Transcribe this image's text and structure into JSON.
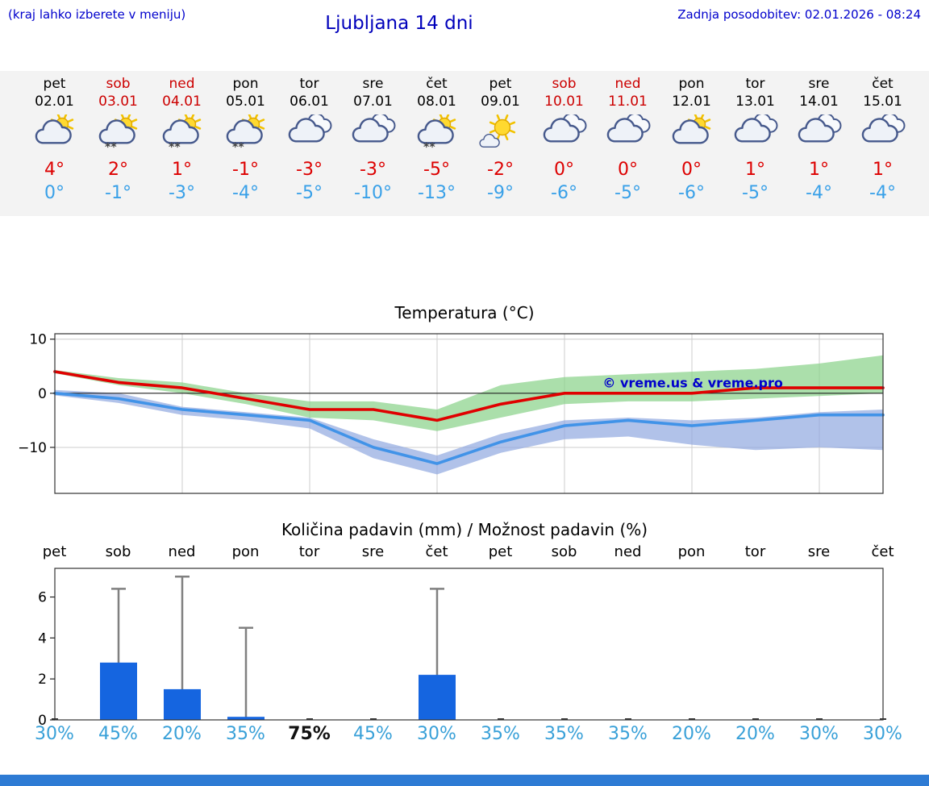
{
  "header": {
    "hint": "(kraj lahko izberete v meniju)",
    "title": "Ljubljana 14 dni",
    "updated": "Zadnja posodobitev: 02.01.2026 - 08:24"
  },
  "colors": {
    "high_temp": "#dd0000",
    "low_temp": "#38a0e8",
    "weekend": "#cc0000",
    "header_blue": "#0000cc",
    "strip_background": "#f3f3f3",
    "bottom_bar": "#2e7bd4"
  },
  "days": [
    {
      "name": "pet",
      "date": "02.01",
      "weekend": false,
      "icon": "partly-sunny-icon",
      "high": "4°",
      "low": "0°"
    },
    {
      "name": "sob",
      "date": "03.01",
      "weekend": true,
      "icon": "partly-sunny-snow-icon",
      "high": "2°",
      "low": "-1°"
    },
    {
      "name": "ned",
      "date": "04.01",
      "weekend": true,
      "icon": "partly-sunny-snow-icon",
      "high": "1°",
      "low": "-3°"
    },
    {
      "name": "pon",
      "date": "05.01",
      "weekend": false,
      "icon": "partly-sunny-snow-icon",
      "high": "-1°",
      "low": "-4°"
    },
    {
      "name": "tor",
      "date": "06.01",
      "weekend": false,
      "icon": "cloudy-icon",
      "high": "-3°",
      "low": "-5°"
    },
    {
      "name": "sre",
      "date": "07.01",
      "weekend": false,
      "icon": "cloudy-icon",
      "high": "-3°",
      "low": "-10°"
    },
    {
      "name": "čet",
      "date": "08.01",
      "weekend": false,
      "icon": "partly-sunny-snow-icon",
      "high": "-5°",
      "low": "-13°"
    },
    {
      "name": "pet",
      "date": "09.01",
      "weekend": false,
      "icon": "mostly-sunny-icon",
      "high": "-2°",
      "low": "-9°"
    },
    {
      "name": "sob",
      "date": "10.01",
      "weekend": true,
      "icon": "cloudy-icon",
      "high": "0°",
      "low": "-6°"
    },
    {
      "name": "ned",
      "date": "11.01",
      "weekend": true,
      "icon": "cloudy-icon",
      "high": "0°",
      "low": "-5°"
    },
    {
      "name": "pon",
      "date": "12.01",
      "weekend": false,
      "icon": "partly-sunny-icon",
      "high": "0°",
      "low": "-6°"
    },
    {
      "name": "tor",
      "date": "13.01",
      "weekend": false,
      "icon": "cloudy-icon",
      "high": "1°",
      "low": "-5°"
    },
    {
      "name": "sre",
      "date": "14.01",
      "weekend": false,
      "icon": "cloudy-icon",
      "high": "1°",
      "low": "-4°"
    },
    {
      "name": "čet",
      "date": "15.01",
      "weekend": false,
      "icon": "cloudy-icon",
      "high": "1°",
      "low": "-4°"
    }
  ],
  "chart_data": [
    {
      "type": "line",
      "title": "Temperatura (°C)",
      "x_labels": [
        "pet",
        "sob",
        "ned",
        "pon",
        "tor",
        "sre",
        "čet",
        "pet",
        "sob",
        "ned",
        "pon",
        "tor",
        "sre",
        "čet"
      ],
      "ylim": [
        -18.5,
        11
      ],
      "yticks": [
        {
          "v": 10,
          "label": "10"
        },
        {
          "v": 0,
          "label": "0"
        },
        {
          "v": -10,
          "label": "−10"
        }
      ],
      "grid_x_indices": [
        2,
        4,
        6,
        8,
        10,
        12
      ],
      "watermark": "© vreme.us & vreme.pro",
      "watermark_pos": {
        "day": 8.6,
        "value": 1.1
      },
      "series": [
        {
          "name": "max-temp",
          "color": "#e00000",
          "values": [
            4,
            2,
            1,
            -1,
            -3,
            -3,
            -5,
            -2,
            0,
            0,
            0,
            1,
            1,
            1
          ]
        },
        {
          "name": "min-temp",
          "color": "#4193e8",
          "values": [
            0,
            -1,
            -3,
            -4,
            -5,
            -10,
            -13,
            -9,
            -6,
            -5,
            -6,
            -5,
            -4,
            -4
          ]
        }
      ],
      "bands": [
        {
          "name": "max-temp-range",
          "color": "#8fd48f",
          "opacity": 0.75,
          "upper": [
            4.3,
            2.8,
            2,
            0,
            -1.5,
            -1.5,
            -3,
            1.5,
            3,
            3.5,
            4,
            4.5,
            5.5,
            7
          ],
          "lower": [
            3.7,
            1.5,
            0,
            -2,
            -4.5,
            -5,
            -7,
            -4.5,
            -2,
            -1.5,
            -1.5,
            -1,
            -0.5,
            0
          ]
        },
        {
          "name": "min-temp-range",
          "color": "#90a8e0",
          "opacity": 0.7,
          "upper": [
            0.6,
            0,
            -2.5,
            -3.5,
            -4.5,
            -8.5,
            -11.5,
            -7.5,
            -5,
            -4.5,
            -5,
            -4.5,
            -3.5,
            -3
          ],
          "lower": [
            -0.4,
            -1.8,
            -4,
            -5,
            -6.5,
            -12,
            -15,
            -11,
            -8.5,
            -8,
            -9.5,
            -10.5,
            -10,
            -10.5
          ]
        }
      ]
    },
    {
      "type": "bar",
      "title": "Količina padavin (mm) / Možnost padavin (%)",
      "categories": [
        "pet",
        "sob",
        "ned",
        "pon",
        "tor",
        "sre",
        "čet",
        "pet",
        "sob",
        "ned",
        "pon",
        "tor",
        "sre",
        "čet"
      ],
      "values": [
        0,
        2.8,
        1.5,
        0.15,
        0,
        0,
        2.2,
        0,
        0,
        0,
        0,
        0,
        0,
        0
      ],
      "whiskers": [
        0,
        6.4,
        7.0,
        4.5,
        0,
        0,
        6.4,
        0,
        0,
        0,
        0,
        0,
        0,
        0
      ],
      "probabilities": [
        "30%",
        "45%",
        "20%",
        "35%",
        "75%",
        "45%",
        "30%",
        "35%",
        "35%",
        "35%",
        "20%",
        "20%",
        "30%",
        "30%"
      ],
      "probability_emphasis_index": 4,
      "ylim": [
        0,
        7.4
      ],
      "yticks": [
        0,
        2,
        4,
        6
      ],
      "bar_color": "#1565e0",
      "whisker_color": "#808080"
    }
  ]
}
